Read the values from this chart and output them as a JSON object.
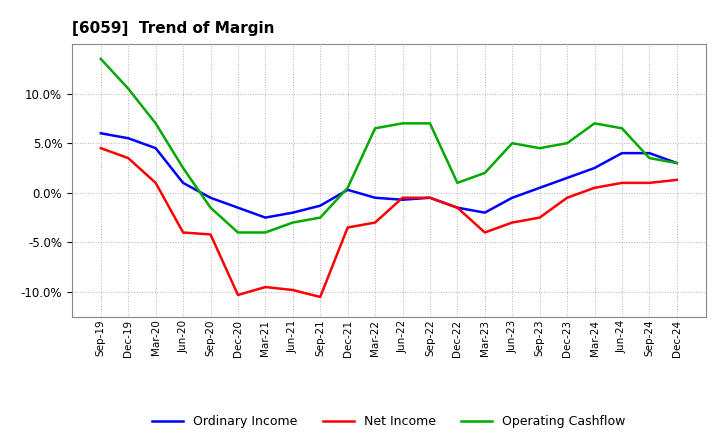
{
  "title": "[6059]  Trend of Margin",
  "x_labels": [
    "Sep-19",
    "Dec-19",
    "Mar-20",
    "Jun-20",
    "Sep-20",
    "Dec-20",
    "Mar-21",
    "Jun-21",
    "Sep-21",
    "Dec-21",
    "Mar-22",
    "Jun-22",
    "Sep-22",
    "Dec-22",
    "Mar-23",
    "Jun-23",
    "Sep-23",
    "Dec-23",
    "Mar-24",
    "Jun-24",
    "Sep-24",
    "Dec-24"
  ],
  "ordinary_income": [
    6.0,
    5.5,
    4.5,
    1.0,
    -0.5,
    -1.5,
    -2.5,
    -2.0,
    -1.3,
    0.3,
    -0.5,
    -0.7,
    -0.5,
    -1.5,
    -2.0,
    -0.5,
    0.5,
    1.5,
    2.5,
    4.0,
    4.0,
    3.0
  ],
  "net_income": [
    4.5,
    3.5,
    1.0,
    -4.0,
    -4.2,
    -10.3,
    -9.5,
    -9.8,
    -10.5,
    -3.5,
    -3.0,
    -0.5,
    -0.5,
    -1.5,
    -4.0,
    -3.0,
    -2.5,
    -0.5,
    0.5,
    1.0,
    1.0,
    1.3
  ],
  "operating_cashflow": [
    13.5,
    10.5,
    7.0,
    2.5,
    -1.5,
    -4.0,
    -4.0,
    -3.0,
    -2.5,
    0.5,
    6.5,
    7.0,
    7.0,
    1.0,
    2.0,
    5.0,
    4.5,
    5.0,
    7.0,
    6.5,
    3.5,
    3.0
  ],
  "ylim": [
    -12.5,
    15.0
  ],
  "yticks": [
    -10.0,
    -5.0,
    0.0,
    5.0,
    10.0
  ],
  "color_ordinary": "#0000FF",
  "color_net": "#FF0000",
  "color_cashflow": "#00AA00",
  "background_color": "#FFFFFF",
  "grid_color": "#AAAAAA"
}
